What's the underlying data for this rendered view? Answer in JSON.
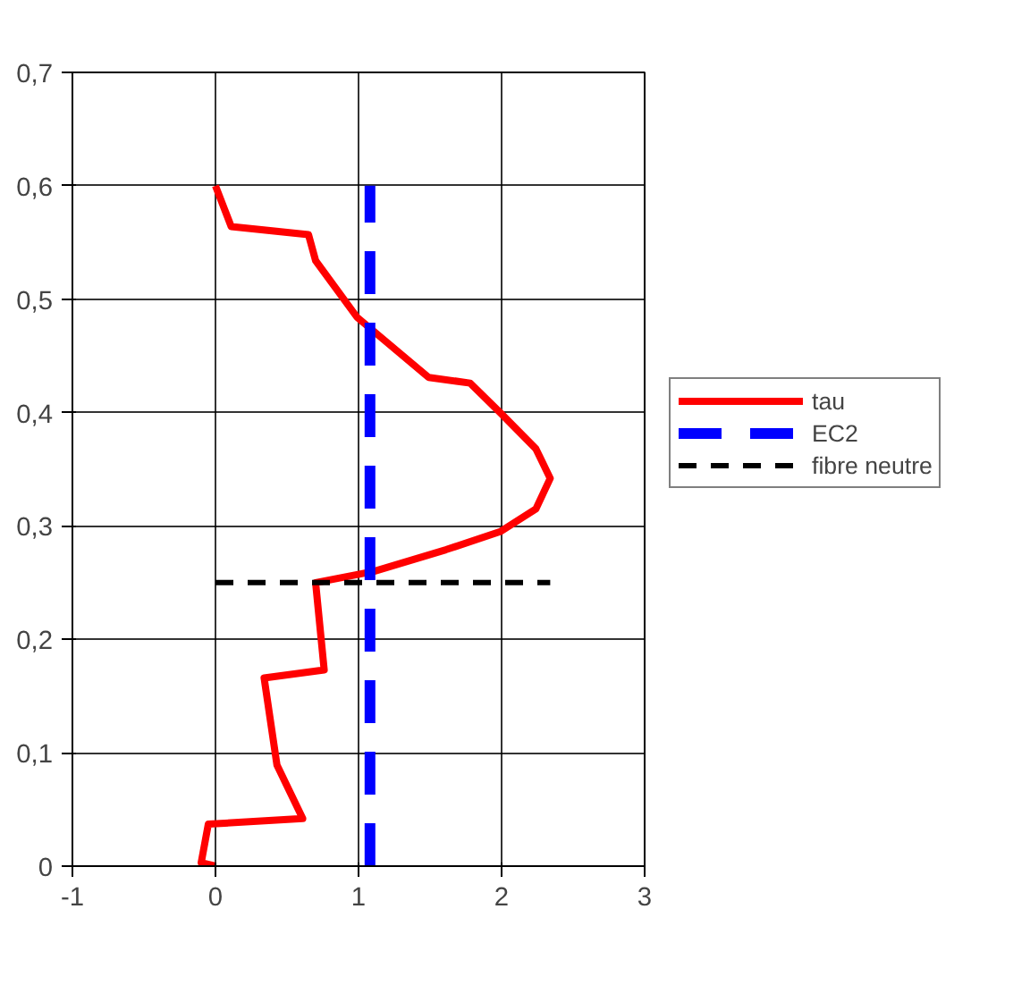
{
  "chart_data": {
    "type": "line",
    "xlim": [
      -1,
      3
    ],
    "ylim": [
      0,
      0.7
    ],
    "xticks": [
      -1,
      0,
      1,
      2,
      3
    ],
    "yticks": [
      {
        "value": 0,
        "label": "0"
      },
      {
        "value": 0.1,
        "label": "0,1"
      },
      {
        "value": 0.2,
        "label": "0,2"
      },
      {
        "value": 0.3,
        "label": "0,3"
      },
      {
        "value": 0.4,
        "label": "0,4"
      },
      {
        "value": 0.5,
        "label": "0,5"
      },
      {
        "value": 0.6,
        "label": "0,6"
      },
      {
        "value": 0.7,
        "label": "0,7"
      }
    ],
    "grid": true,
    "legend": "right",
    "series": [
      {
        "name": "tau",
        "color": "#ff0000",
        "line_style": "solid",
        "x": [
          0.0,
          -0.1,
          -0.05,
          0.61,
          0.43,
          0.34,
          0.76,
          0.7,
          1.11,
          1.61,
          1.99,
          2.24,
          2.34,
          2.24,
          1.99,
          1.78,
          1.49,
          0.99,
          0.7,
          0.65,
          0.11,
          0.0
        ],
        "values": [
          0.0,
          0.003,
          0.037,
          0.042,
          0.089,
          0.166,
          0.173,
          0.25,
          0.26,
          0.279,
          0.295,
          0.315,
          0.342,
          0.368,
          0.4,
          0.426,
          0.431,
          0.484,
          0.534,
          0.557,
          0.564,
          0.6
        ]
      },
      {
        "name": "EC2",
        "color": "#0000ff",
        "line_style": "dashed",
        "x": [
          1.08,
          1.08
        ],
        "values": [
          0,
          0.6
        ]
      },
      {
        "name": "fibre neutre",
        "color": "#000000",
        "line_style": "dashed",
        "x": [
          0,
          2.34
        ],
        "values": [
          0.25,
          0.25
        ]
      }
    ]
  }
}
